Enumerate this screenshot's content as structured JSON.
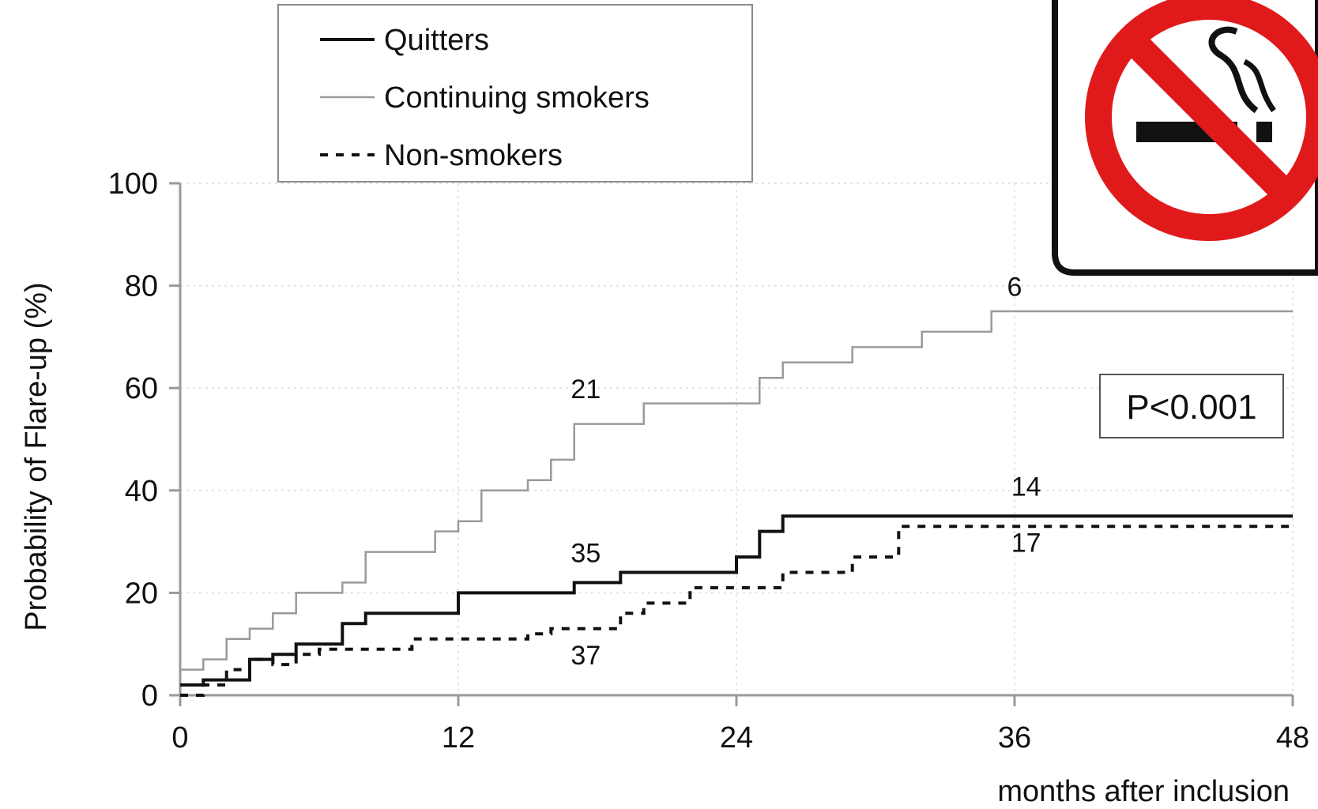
{
  "chart_data": {
    "type": "line",
    "step": true,
    "xlabel": "months after inclusion",
    "ylabel": "Probability of Flare-up (%)",
    "xlim": [
      0,
      48
    ],
    "ylim": [
      0,
      100
    ],
    "x_ticks": [
      0,
      12,
      24,
      36,
      48
    ],
    "y_ticks": [
      0,
      20,
      40,
      60,
      80,
      100
    ],
    "x_tick_labels": [
      "0",
      "12",
      "24",
      "36",
      "48"
    ],
    "y_tick_labels": [
      "0",
      "20",
      "40",
      "60",
      "80",
      "100"
    ],
    "legend_position": "top-left",
    "grid": true,
    "series": [
      {
        "name": "Quitters",
        "style": "solid-thick",
        "color": "#111111",
        "points": [
          [
            0,
            2
          ],
          [
            1,
            3
          ],
          [
            3,
            7
          ],
          [
            4,
            8
          ],
          [
            5,
            10
          ],
          [
            7,
            14
          ],
          [
            8,
            16
          ],
          [
            12,
            20
          ],
          [
            17,
            22
          ],
          [
            19,
            24
          ],
          [
            24,
            27
          ],
          [
            25,
            32
          ],
          [
            26,
            35
          ],
          [
            48,
            35
          ]
        ]
      },
      {
        "name": "Continuing smokers",
        "style": "solid-thin",
        "color": "#9a9a9a",
        "points": [
          [
            0,
            5
          ],
          [
            1,
            7
          ],
          [
            2,
            11
          ],
          [
            3,
            13
          ],
          [
            4,
            16
          ],
          [
            5,
            20
          ],
          [
            7,
            22
          ],
          [
            8,
            28
          ],
          [
            11,
            32
          ],
          [
            12,
            34
          ],
          [
            13,
            40
          ],
          [
            15,
            42
          ],
          [
            16,
            46
          ],
          [
            17,
            53
          ],
          [
            20,
            57
          ],
          [
            25,
            62
          ],
          [
            26,
            65
          ],
          [
            29,
            68
          ],
          [
            32,
            71
          ],
          [
            35,
            75
          ],
          [
            48,
            75
          ]
        ]
      },
      {
        "name": "Non-smokers",
        "style": "dashed",
        "color": "#111111",
        "points": [
          [
            0,
            0
          ],
          [
            1,
            2
          ],
          [
            2,
            5
          ],
          [
            3,
            7
          ],
          [
            4,
            6
          ],
          [
            5,
            8
          ],
          [
            6,
            9
          ],
          [
            10,
            11
          ],
          [
            15,
            12
          ],
          [
            16,
            13
          ],
          [
            19,
            16
          ],
          [
            20,
            18
          ],
          [
            22,
            21
          ],
          [
            26,
            24
          ],
          [
            29,
            27
          ],
          [
            31,
            33
          ],
          [
            48,
            33
          ]
        ]
      }
    ],
    "risk_labels": [
      {
        "text": "21",
        "x": 17.5,
        "y": 58
      },
      {
        "text": "6",
        "x": 36,
        "y": 78
      },
      {
        "text": "35",
        "x": 17.5,
        "y": 26
      },
      {
        "text": "37",
        "x": 17.5,
        "y": 6
      },
      {
        "text": "14",
        "x": 36.5,
        "y": 39
      },
      {
        "text": "17",
        "x": 36.5,
        "y": 28
      }
    ],
    "p_value": "P<0.001",
    "icon": "no-smoking-icon",
    "icon_colors": {
      "ring": "#e01a1a",
      "symbol": "#111111"
    }
  }
}
